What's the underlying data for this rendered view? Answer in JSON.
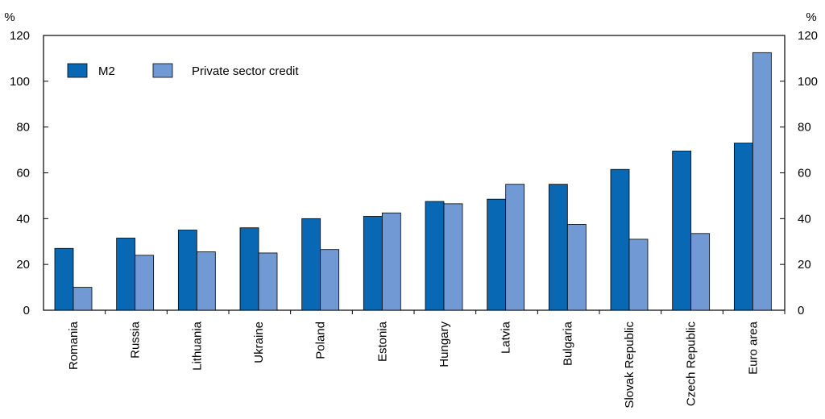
{
  "chart_data": {
    "type": "bar",
    "title": "",
    "xlabel": "",
    "ylabel_left": "%",
    "ylabel_right": "%",
    "ylim": [
      0,
      120
    ],
    "yticks": [
      0,
      20,
      40,
      60,
      80,
      100,
      120
    ],
    "grid": false,
    "legend_position": "top-left",
    "categories": [
      "Romania",
      "Russia",
      "Lithuania",
      "Ukraine",
      "Poland",
      "Estonia",
      "Hungary",
      "Latvia",
      "Bulgaria",
      "Slovak Republic",
      "Czech Republic",
      "Euro area"
    ],
    "series": [
      {
        "name": "M2",
        "color": "#0868b4",
        "values": [
          27,
          31.5,
          35,
          36,
          40,
          41,
          47.5,
          48.5,
          55,
          61.5,
          69.5,
          73
        ]
      },
      {
        "name": "Private sector credit",
        "color": "#7199d3",
        "values": [
          10,
          24,
          25.5,
          25,
          26.5,
          42.5,
          46.5,
          55,
          37.5,
          31,
          33.5,
          112.5
        ]
      }
    ]
  }
}
